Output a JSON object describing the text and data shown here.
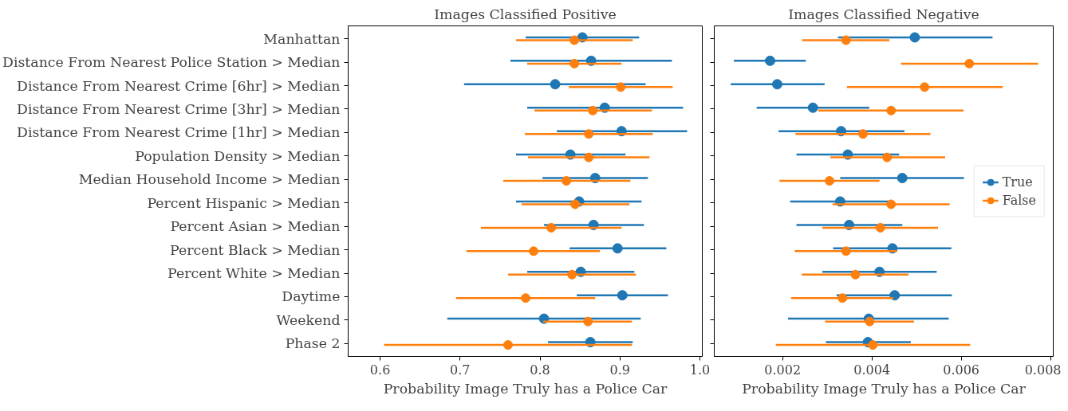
{
  "chart_data": [
    {
      "type": "scatter",
      "orientation": "horizontal",
      "title": "Images Classified Positive",
      "xlabel": "Probability Image Truly has a Police Car",
      "categories": [
        "Manhattan",
        "Distance From Nearest Police Station > Median",
        "Distance From Nearest Crime [6hr] > Median",
        "Distance From Nearest Crime [3hr] > Median",
        "Distance From Nearest Crime [1hr] > Median",
        "Population Density > Median",
        "Median Household Income > Median",
        "Percent Hispanic > Median",
        "Percent Asian > Median",
        "Percent Black > Median",
        "Percent White > Median",
        "Daytime",
        "Weekend",
        "Phase 2"
      ],
      "xlim": [
        0.56,
        1.003
      ],
      "xticks": [
        0.6,
        0.7,
        0.8,
        0.9,
        {
          "value": 1.0,
          "label": "1.0"
        }
      ],
      "marker": "circle",
      "grid": false,
      "series": [
        {
          "color": "#1f77b4",
          "values": [
            0.853,
            0.864,
            0.819,
            0.881,
            0.902,
            0.838,
            0.869,
            0.849,
            0.867,
            0.897,
            0.851,
            0.903,
            0.805,
            0.863
          ],
          "errors": [
            [
              0.782,
              0.924
            ],
            [
              0.763,
              0.965
            ],
            [
              0.705,
              0.932
            ],
            [
              0.784,
              0.979
            ],
            [
              0.821,
              0.984
            ],
            [
              0.77,
              0.907
            ],
            [
              0.803,
              0.935
            ],
            [
              0.77,
              0.927
            ],
            [
              0.805,
              0.93
            ],
            [
              0.837,
              0.958
            ],
            [
              0.784,
              0.918
            ],
            [
              0.846,
              0.96
            ],
            [
              0.684,
              0.926
            ],
            [
              0.81,
              0.916
            ]
          ]
        },
        {
          "color": "#ff7f0e",
          "values": [
            0.843,
            0.843,
            0.901,
            0.866,
            0.861,
            0.861,
            0.833,
            0.844,
            0.814,
            0.792,
            0.84,
            0.782,
            0.86,
            0.76
          ],
          "errors": [
            [
              0.77,
              0.916
            ],
            [
              0.784,
              0.902
            ],
            [
              0.836,
              0.966
            ],
            [
              0.793,
              0.94
            ],
            [
              0.781,
              0.941
            ],
            [
              0.785,
              0.937
            ],
            [
              0.754,
              0.913
            ],
            [
              0.777,
              0.912
            ],
            [
              0.726,
              0.902
            ],
            [
              0.708,
              0.875
            ],
            [
              0.76,
              0.92
            ],
            [
              0.695,
              0.869
            ],
            [
              0.804,
              0.915
            ],
            [
              0.605,
              0.915
            ]
          ]
        }
      ]
    },
    {
      "type": "scatter",
      "orientation": "horizontal",
      "title": "Images Classified Negative",
      "xlabel": "Probability Image Truly has a Police Car",
      "categories": [
        null,
        null,
        null,
        null,
        null,
        null,
        null,
        null,
        null,
        null,
        null,
        null,
        null,
        null
      ],
      "xlim": [
        0.00047,
        0.00806
      ],
      "xticks": [
        0.002,
        0.004,
        0.006,
        0.008
      ],
      "marker": "circle",
      "legend": "right",
      "grid": false,
      "series": [
        {
          "name": "True",
          "color": "#1f77b4",
          "values": [
            0.00496,
            0.00172,
            0.00188,
            0.00268,
            0.00331,
            0.00346,
            0.00468,
            0.00329,
            0.00349,
            0.00446,
            0.00417,
            0.00451,
            0.00393,
            0.00391
          ],
          "errors": [
            [
              0.00324,
              0.0067
            ],
            [
              0.00091,
              0.00252
            ],
            [
              0.00084,
              0.00294
            ],
            [
              0.00142,
              0.00394
            ],
            [
              0.00191,
              0.00473
            ],
            [
              0.00231,
              0.00461
            ],
            [
              0.00329,
              0.00606
            ],
            [
              0.00217,
              0.00442
            ],
            [
              0.00231,
              0.00468
            ],
            [
              0.00313,
              0.00578
            ],
            [
              0.00289,
              0.00545
            ],
            [
              0.00321,
              0.00579
            ],
            [
              0.00212,
              0.00572
            ],
            [
              0.00297,
              0.00487
            ]
          ]
        },
        {
          "name": "False",
          "color": "#ff7f0e",
          "values": [
            0.00342,
            0.00618,
            0.00518,
            0.00443,
            0.0038,
            0.00434,
            0.00305,
            0.00443,
            0.00419,
            0.00342,
            0.00363,
            0.00334,
            0.00395,
            0.00402
          ],
          "errors": [
            [
              0.00244,
              0.00439
            ],
            [
              0.00465,
              0.00772
            ],
            [
              0.00344,
              0.00693
            ],
            [
              0.0028,
              0.00605
            ],
            [
              0.00229,
              0.00531
            ],
            [
              0.00307,
              0.00564
            ],
            [
              0.00193,
              0.00417
            ],
            [
              0.00312,
              0.00574
            ],
            [
              0.00289,
              0.00548
            ],
            [
              0.00227,
              0.00457
            ],
            [
              0.00243,
              0.00482
            ],
            [
              0.00219,
              0.00448
            ],
            [
              0.00295,
              0.00494
            ],
            [
              0.00185,
              0.0062
            ]
          ]
        }
      ]
    }
  ]
}
